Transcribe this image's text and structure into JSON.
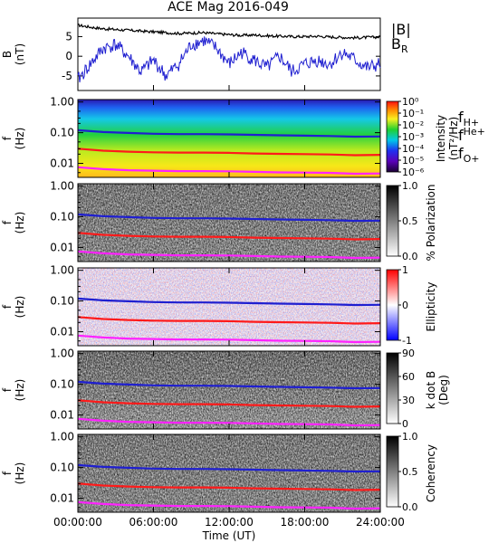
{
  "title": "ACE Mag 2016-049",
  "legend": {
    "b_total": "|B|",
    "b_r_main": "B",
    "b_r_sub": "R"
  },
  "species": [
    {
      "main": "f",
      "sub": "H+",
      "color": "#1f1fd0"
    },
    {
      "main": "f",
      "sub": "He+",
      "color": "#cc1f1f"
    },
    {
      "main": "f",
      "sub": "O+",
      "color": "#e81ce8"
    }
  ],
  "time_axis": {
    "ticks": [
      "00:00:00",
      "06:00:00",
      "12:00:00",
      "18:00:00",
      "24:00:00"
    ],
    "label": "Time (UT)"
  },
  "freq_axis": {
    "ylabel_main": "f",
    "ylabel_unit": "(Hz)",
    "ticks": [
      "1.00",
      "0.10",
      "0.01"
    ]
  },
  "colors": {
    "b_total": "#000000",
    "b_r": "#1f1fd0",
    "h_line": "#1f1fd0",
    "he_line": "#ff1a1a",
    "o_line": "#ff22ff"
  },
  "chart_data": [
    {
      "type": "line",
      "panel": "field",
      "ylabel_main": "B",
      "ylabel_unit": "(nT)",
      "ylim": [
        -8.7,
        9.7
      ],
      "yticks": [
        "5",
        "0",
        "-5"
      ],
      "x": [
        0,
        1,
        2,
        3,
        4,
        5,
        6,
        7,
        8,
        9,
        10,
        11,
        12,
        13,
        14,
        15,
        16,
        17,
        18,
        19,
        20,
        21,
        22,
        23,
        24
      ],
      "series": [
        {
          "name": "|B|",
          "values": [
            7.9,
            7.4,
            7.0,
            6.8,
            6.6,
            6.4,
            6.2,
            6.0,
            5.8,
            5.9,
            6.0,
            5.7,
            5.5,
            5.3,
            5.4,
            5.2,
            5.1,
            5.0,
            5.0,
            5.1,
            4.9,
            4.8,
            4.7,
            4.8,
            4.9
          ]
        },
        {
          "name": "B_R",
          "values": [
            -6,
            -2,
            2,
            3,
            0,
            -4,
            -1,
            -5,
            -2,
            3,
            4,
            2,
            -2,
            1,
            -1,
            -3,
            0,
            -4,
            -2,
            -1,
            -2,
            1,
            -1,
            -3,
            -2
          ]
        }
      ]
    },
    {
      "type": "heatmap",
      "panel": "intensity",
      "quantity": "Intensity (nT²/Hz)",
      "colorbar": {
        "ticks": [
          "10⁰",
          "10⁻¹",
          "10⁻²",
          "10⁻³",
          "10⁻⁴",
          "10⁻⁵",
          "10⁻⁶"
        ],
        "scale": "log"
      },
      "label": "Intensity",
      "unit": "(nT²/Hz)",
      "palette": "rainbow"
    },
    {
      "type": "heatmap",
      "panel": "polarization",
      "quantity": "% Polarization",
      "colorbar": {
        "ticks": [
          "1.0",
          "0.5",
          "0.0"
        ]
      },
      "label": "% Polarization",
      "unit": "",
      "palette": "gray"
    },
    {
      "type": "heatmap",
      "panel": "ellipticity",
      "quantity": "Ellipticity",
      "colorbar": {
        "ticks": [
          "1",
          "0",
          "-1"
        ]
      },
      "label": "Ellipticity",
      "unit": "",
      "palette": "bwr"
    },
    {
      "type": "heatmap",
      "panel": "kdotb",
      "quantity": "k dot B (Deg)",
      "colorbar": {
        "ticks": [
          "90",
          "60",
          "30",
          "0"
        ]
      },
      "label": "k dot B",
      "unit": "(Deg)",
      "palette": "gray"
    },
    {
      "type": "heatmap",
      "panel": "coherency",
      "quantity": "Coherency",
      "colorbar": {
        "ticks": [
          "1.0",
          "0.5",
          "0.0"
        ]
      },
      "label": "Coherency",
      "unit": "",
      "palette": "gray"
    }
  ],
  "gyrofrequencies_hz": {
    "x": [
      0,
      2,
      4,
      6,
      8,
      10,
      12,
      14,
      16,
      18,
      20,
      22,
      24
    ],
    "f_H": [
      0.12,
      0.105,
      0.098,
      0.092,
      0.09,
      0.09,
      0.088,
      0.085,
      0.082,
      0.08,
      0.078,
      0.074,
      0.075
    ],
    "f_He": [
      0.03,
      0.026,
      0.024,
      0.023,
      0.0225,
      0.0225,
      0.022,
      0.021,
      0.0205,
      0.02,
      0.0195,
      0.0185,
      0.019
    ],
    "f_O": [
      0.0075,
      0.0065,
      0.006,
      0.0058,
      0.0056,
      0.0056,
      0.0055,
      0.0053,
      0.0051,
      0.005,
      0.0049,
      0.0046,
      0.0047
    ]
  }
}
